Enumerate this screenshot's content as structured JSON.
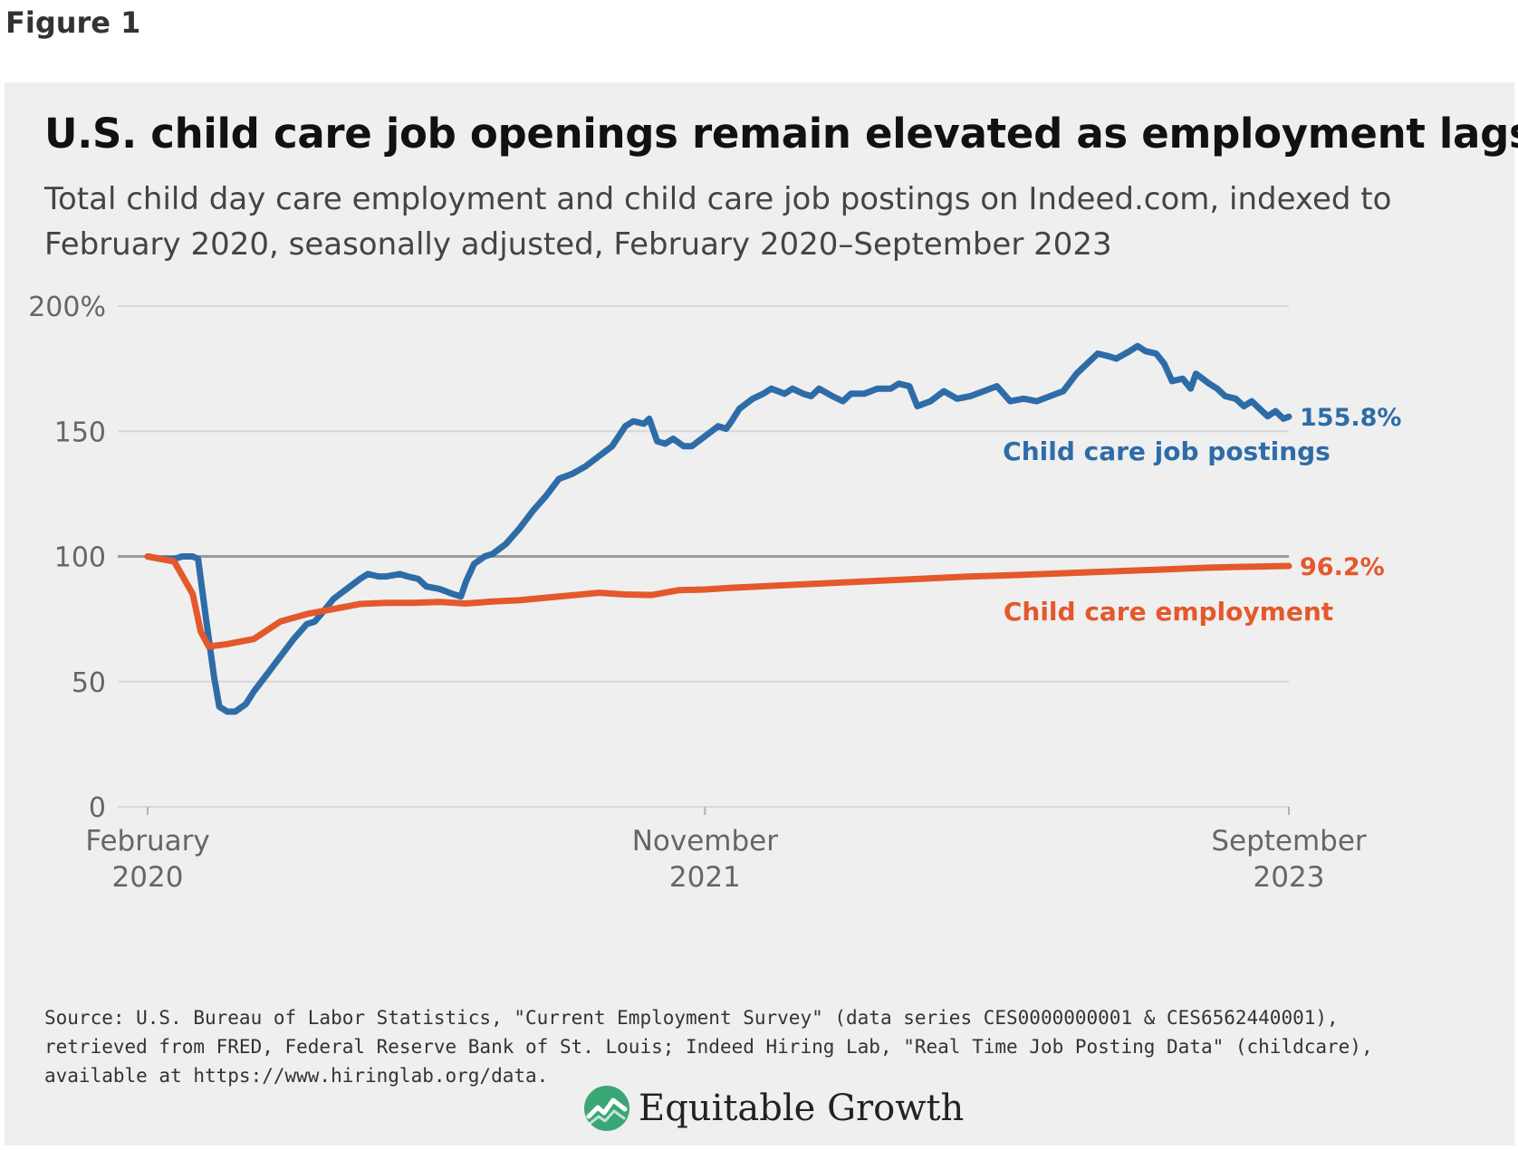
{
  "figure_label": "Figure 1",
  "brand": "Equitable Growth",
  "source": "Source: U.S. Bureau of Labor Statistics, \"Current Employment Survey\" (data series CES0000000001 & CES6562440001), retrieved from FRED, Federal Reserve Bank of St. Louis; Indeed Hiring Lab, \"Real Time Job Posting Data\" (childcare), available at https://www.hiringlab.org/data.",
  "colors": {
    "postings": "#2e6ca8",
    "employment": "#e4582c",
    "baseline": "#9a9a9a",
    "grid": "#d7d7d7",
    "panel": "#efefef"
  },
  "chart_data": {
    "type": "line",
    "title": "U.S. child care job openings remain elevated as employment lags",
    "subtitle": "Total child day care employment and child care job postings on Indeed.com, indexed to February 2020, seasonally adjusted, February 2020–September 2023",
    "xlabel": "",
    "ylabel": "",
    "x_unit": "months since February 2020",
    "xlim": [
      0,
      43
    ],
    "ylim": [
      0,
      200
    ],
    "yticks": [
      0,
      50,
      100,
      150,
      200
    ],
    "ytick_labels": [
      "0",
      "50",
      "100",
      "150",
      "200%"
    ],
    "xticks": [
      {
        "x": 0,
        "line1": "February",
        "line2": "2020"
      },
      {
        "x": 21,
        "line1": "November",
        "line2": "2021"
      },
      {
        "x": 43,
        "line1": "September",
        "line2": "2023"
      }
    ],
    "reference_line": 100,
    "series": [
      {
        "name": "Child care job postings",
        "color_key": "postings",
        "end_label": "155.8%",
        "points": [
          [
            0,
            100
          ],
          [
            0.5,
            99
          ],
          [
            1,
            99
          ],
          [
            1.3,
            100
          ],
          [
            1.7,
            100
          ],
          [
            1.9,
            99
          ],
          [
            2.2,
            75
          ],
          [
            2.5,
            52
          ],
          [
            2.7,
            40
          ],
          [
            3.0,
            38
          ],
          [
            3.3,
            38
          ],
          [
            3.7,
            41
          ],
          [
            4.0,
            46
          ],
          [
            4.5,
            53
          ],
          [
            5.0,
            60
          ],
          [
            5.5,
            67
          ],
          [
            6.0,
            73
          ],
          [
            6.3,
            74
          ],
          [
            6.7,
            79
          ],
          [
            7.0,
            83
          ],
          [
            7.5,
            87
          ],
          [
            8.0,
            91
          ],
          [
            8.3,
            93
          ],
          [
            8.7,
            92
          ],
          [
            9.0,
            92
          ],
          [
            9.5,
            93
          ],
          [
            9.8,
            92
          ],
          [
            10.2,
            91
          ],
          [
            10.5,
            88
          ],
          [
            11.0,
            87
          ],
          [
            11.5,
            85
          ],
          [
            11.8,
            84
          ],
          [
            12.0,
            90
          ],
          [
            12.3,
            97
          ],
          [
            12.7,
            100
          ],
          [
            13.0,
            101
          ],
          [
            13.5,
            105
          ],
          [
            14.0,
            111
          ],
          [
            14.5,
            118
          ],
          [
            15.0,
            124
          ],
          [
            15.5,
            131
          ],
          [
            16.0,
            133
          ],
          [
            16.5,
            136
          ],
          [
            17.0,
            140
          ],
          [
            17.5,
            144
          ],
          [
            18.0,
            152
          ],
          [
            18.3,
            154
          ],
          [
            18.7,
            153
          ],
          [
            18.9,
            155
          ],
          [
            19.2,
            146
          ],
          [
            19.5,
            145
          ],
          [
            19.8,
            147
          ],
          [
            20.2,
            144
          ],
          [
            20.5,
            144
          ],
          [
            21.0,
            148
          ],
          [
            21.5,
            152
          ],
          [
            21.8,
            151
          ],
          [
            22.0,
            154
          ],
          [
            22.3,
            159
          ],
          [
            22.8,
            163
          ],
          [
            23.2,
            165
          ],
          [
            23.5,
            167
          ],
          [
            24.0,
            165
          ],
          [
            24.3,
            167
          ],
          [
            24.7,
            165
          ],
          [
            25.0,
            164
          ],
          [
            25.3,
            167
          ],
          [
            25.8,
            164
          ],
          [
            26.2,
            162
          ],
          [
            26.5,
            165
          ],
          [
            27.0,
            165
          ],
          [
            27.5,
            167
          ],
          [
            28.0,
            167
          ],
          [
            28.3,
            169
          ],
          [
            28.7,
            168
          ],
          [
            29.0,
            160
          ],
          [
            29.5,
            162
          ],
          [
            30.0,
            166
          ],
          [
            30.5,
            163
          ],
          [
            31.0,
            164
          ],
          [
            31.5,
            166
          ],
          [
            32.0,
            168
          ],
          [
            32.5,
            162
          ],
          [
            33.0,
            163
          ],
          [
            33.5,
            162
          ],
          [
            34.0,
            164
          ],
          [
            34.5,
            166
          ],
          [
            35.0,
            173
          ],
          [
            35.5,
            178
          ],
          [
            35.8,
            181
          ],
          [
            36.2,
            180
          ],
          [
            36.5,
            179
          ],
          [
            37.0,
            182
          ],
          [
            37.3,
            184
          ],
          [
            37.6,
            182
          ],
          [
            38.0,
            181
          ],
          [
            38.3,
            177
          ],
          [
            38.6,
            170
          ],
          [
            39.0,
            171
          ],
          [
            39.3,
            167
          ],
          [
            39.5,
            173
          ],
          [
            40.0,
            169
          ],
          [
            40.3,
            167
          ],
          [
            40.6,
            164
          ],
          [
            41.0,
            163
          ],
          [
            41.3,
            160
          ],
          [
            41.6,
            162
          ],
          [
            41.9,
            159
          ],
          [
            42.2,
            156
          ],
          [
            42.5,
            158
          ],
          [
            42.8,
            155
          ],
          [
            43.0,
            155.8
          ]
        ]
      },
      {
        "name": "Child care employment",
        "color_key": "employment",
        "end_label": "96.2%",
        "points": [
          [
            0,
            100
          ],
          [
            1,
            98
          ],
          [
            1.7,
            85
          ],
          [
            2.0,
            70
          ],
          [
            2.3,
            64
          ],
          [
            3.0,
            65
          ],
          [
            4.0,
            67
          ],
          [
            5.0,
            74
          ],
          [
            6.0,
            77
          ],
          [
            7.0,
            79
          ],
          [
            8.0,
            81
          ],
          [
            9.0,
            81.5
          ],
          [
            10.0,
            81.5
          ],
          [
            11.0,
            81.8
          ],
          [
            12.0,
            81.2
          ],
          [
            13.0,
            82
          ],
          [
            14.0,
            82.5
          ],
          [
            15.0,
            83.5
          ],
          [
            16.0,
            84.5
          ],
          [
            17.0,
            85.5
          ],
          [
            18.0,
            84.8
          ],
          [
            19.0,
            84.6
          ],
          [
            20.0,
            86.5
          ],
          [
            21.0,
            86.8
          ],
          [
            22.0,
            87.5
          ],
          [
            23.0,
            88
          ],
          [
            24.0,
            88.5
          ],
          [
            25.0,
            89
          ],
          [
            26.0,
            89.5
          ],
          [
            27.0,
            90
          ],
          [
            28.0,
            90.5
          ],
          [
            29.0,
            91
          ],
          [
            30.0,
            91.5
          ],
          [
            31.0,
            92
          ],
          [
            32.0,
            92.3
          ],
          [
            33.0,
            92.7
          ],
          [
            34.0,
            93.1
          ],
          [
            35.0,
            93.5
          ],
          [
            36.0,
            93.9
          ],
          [
            37.0,
            94.3
          ],
          [
            38.0,
            94.7
          ],
          [
            39.0,
            95.1
          ],
          [
            40.0,
            95.5
          ],
          [
            41.0,
            95.8
          ],
          [
            42.0,
            96.0
          ],
          [
            43.0,
            96.2
          ]
        ]
      }
    ]
  }
}
